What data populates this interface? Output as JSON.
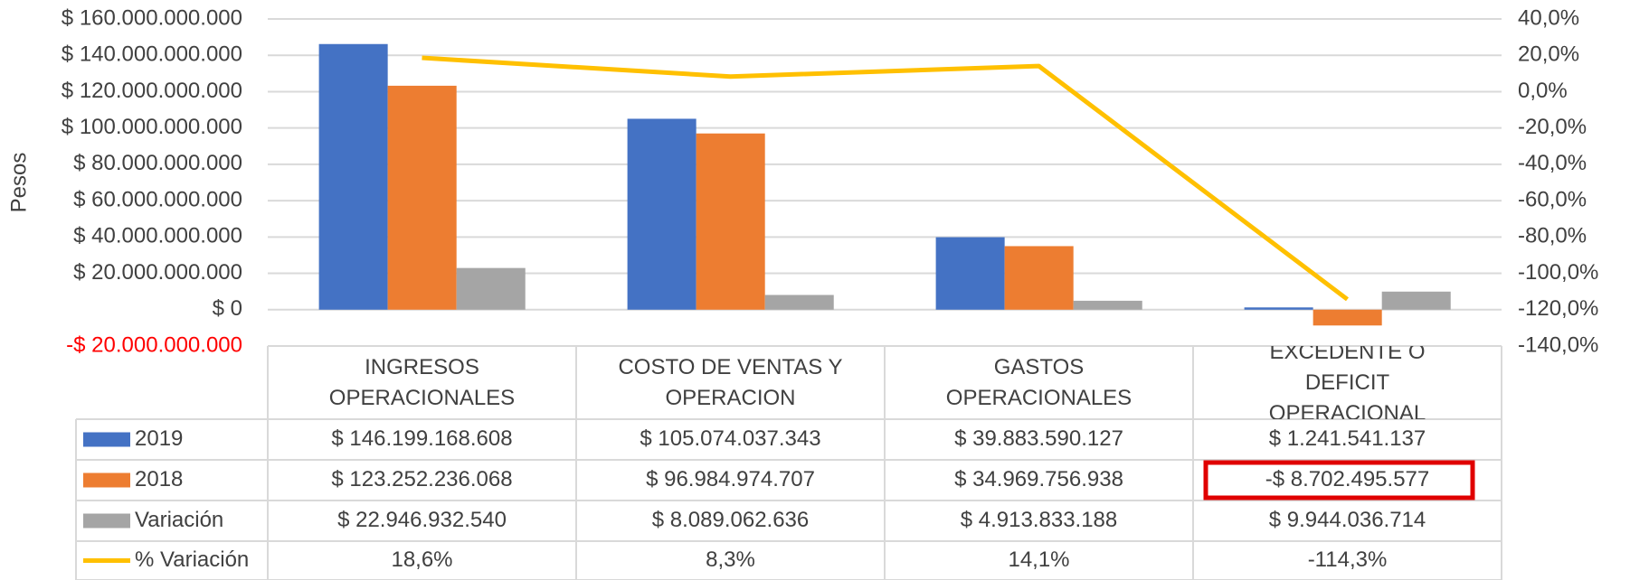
{
  "chart_data": {
    "type": "bar",
    "ylabel": "Pesos",
    "categories": [
      "INGRESOS OPERACIONALES",
      "COSTO DE VENTAS Y OPERACION",
      "GASTOS OPERACIONALES",
      "EXCEDENTE Ó DEFICIT OPERACIONAL"
    ],
    "series": [
      {
        "name": "2019",
        "color": "#4472c4",
        "values": [
          146199168608,
          105074037343,
          39883590127,
          1241541137
        ],
        "value_labels": [
          "$ 146.199.168.608",
          "$ 105.074.037.343",
          "$ 39.883.590.127",
          "$ 1.241.541.137"
        ]
      },
      {
        "name": "2018",
        "color": "#ed7d31",
        "values": [
          123252236068,
          96984974707,
          34969756938,
          -8702495577
        ],
        "value_labels": [
          "$ 123.252.236.068",
          "$ 96.984.974.707",
          "$ 34.969.756.938",
          "-$ 8.702.495.577"
        ]
      },
      {
        "name": "Variación",
        "color": "#a5a5a5",
        "values": [
          22946932540,
          8089062636,
          4913833188,
          9944036714
        ],
        "value_labels": [
          "$ 22.946.932.540",
          "$ 8.089.062.636",
          "$ 4.913.833.188",
          "$ 9.944.036.714"
        ]
      },
      {
        "name": "% Variación",
        "color": "#ffc000",
        "axis": "y2",
        "values": [
          18.6,
          8.3,
          14.1,
          -114.3
        ],
        "value_labels": [
          "18,6%",
          "8,3%",
          "14,1%",
          "-114,3%"
        ]
      }
    ],
    "ylim": [
      -20000000000,
      160000000000
    ],
    "yticks": [
      {
        "value": -20000000000,
        "label": "-$ 20.000.000.000"
      },
      {
        "value": 0,
        "label": "$ 0"
      },
      {
        "value": 20000000000,
        "label": "$ 20.000.000.000"
      },
      {
        "value": 40000000000,
        "label": "$ 40.000.000.000"
      },
      {
        "value": 60000000000,
        "label": "$ 60.000.000.000"
      },
      {
        "value": 80000000000,
        "label": "$ 80.000.000.000"
      },
      {
        "value": 100000000000,
        "label": "$ 100.000.000.000"
      },
      {
        "value": 120000000000,
        "label": "$ 120.000.000.000"
      },
      {
        "value": 140000000000,
        "label": "$ 140.000.000.000"
      },
      {
        "value": 160000000000,
        "label": "$ 160.000.000.000"
      }
    ],
    "negative_tick_color": "#ff0000",
    "y2lim": [
      -140,
      40
    ],
    "y2ticks": [
      {
        "value": -140,
        "label": "-140,0%"
      },
      {
        "value": -120,
        "label": "-120,0%"
      },
      {
        "value": -100,
        "label": "-100,0%"
      },
      {
        "value": -80,
        "label": "-80,0%"
      },
      {
        "value": -60,
        "label": "-60,0%"
      },
      {
        "value": -40,
        "label": "-40,0%"
      },
      {
        "value": -20,
        "label": "-20,0%"
      },
      {
        "value": 0,
        "label": "0,0%"
      },
      {
        "value": 20,
        "label": "20,0%"
      },
      {
        "value": 40,
        "label": "40,0%"
      }
    ],
    "grid": true,
    "highlight": {
      "series": 1,
      "category": 3,
      "color": "#e00000"
    }
  }
}
